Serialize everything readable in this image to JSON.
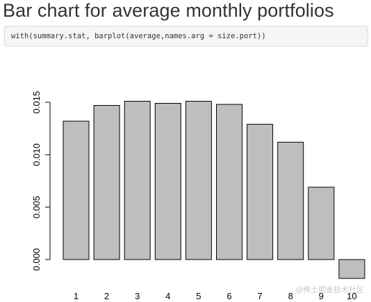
{
  "heading": "Bar chart for average monthly portfolios",
  "code": "with(summary.stat, barplot(average,names.arg = size.port))",
  "watermark": "@稀土掘金技术社区",
  "colors": {
    "bar_fill": "#bebebe",
    "bar_stroke": "#000000",
    "axis": "#000000"
  },
  "chart_data": {
    "type": "bar",
    "categories": [
      "1",
      "2",
      "3",
      "4",
      "5",
      "6",
      "7",
      "8",
      "9",
      "10"
    ],
    "values": [
      0.0132,
      0.0147,
      0.0151,
      0.0149,
      0.0151,
      0.0148,
      0.0129,
      0.0112,
      0.0069,
      -0.0018
    ],
    "yticks": [
      0.0,
      0.005,
      0.01,
      0.015
    ],
    "ytick_labels": [
      "0.000",
      "0.005",
      "0.010",
      "0.015"
    ],
    "ylim": [
      -0.0018,
      0.0155
    ],
    "title": "",
    "xlabel": "",
    "ylabel": "",
    "grid": false,
    "legend": "none"
  }
}
